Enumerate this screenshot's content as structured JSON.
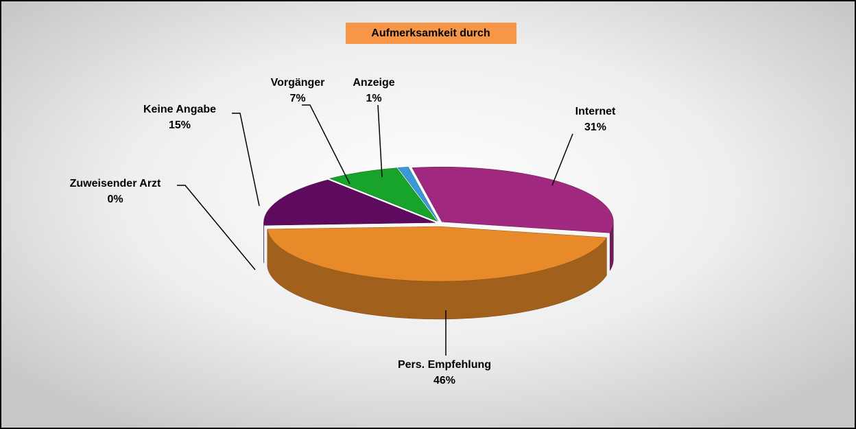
{
  "chart_data": {
    "type": "pie",
    "title": "Aufmerksamkeit durch",
    "categories": [
      "Internet",
      "Pers. Empfehlung",
      "Zuweisender Arzt",
      "Keine Angabe",
      "Vorgänger",
      "Anzeige"
    ],
    "values": [
      31,
      46,
      0,
      15,
      7,
      1
    ],
    "value_labels": [
      "31%",
      "46%",
      "0%",
      "15%",
      "7%",
      "1%"
    ],
    "colors": [
      "#a0287f",
      "#e8892a",
      "#2a0a3a",
      "#5e0a5e",
      "#18a42a",
      "#3a98d8"
    ]
  }
}
